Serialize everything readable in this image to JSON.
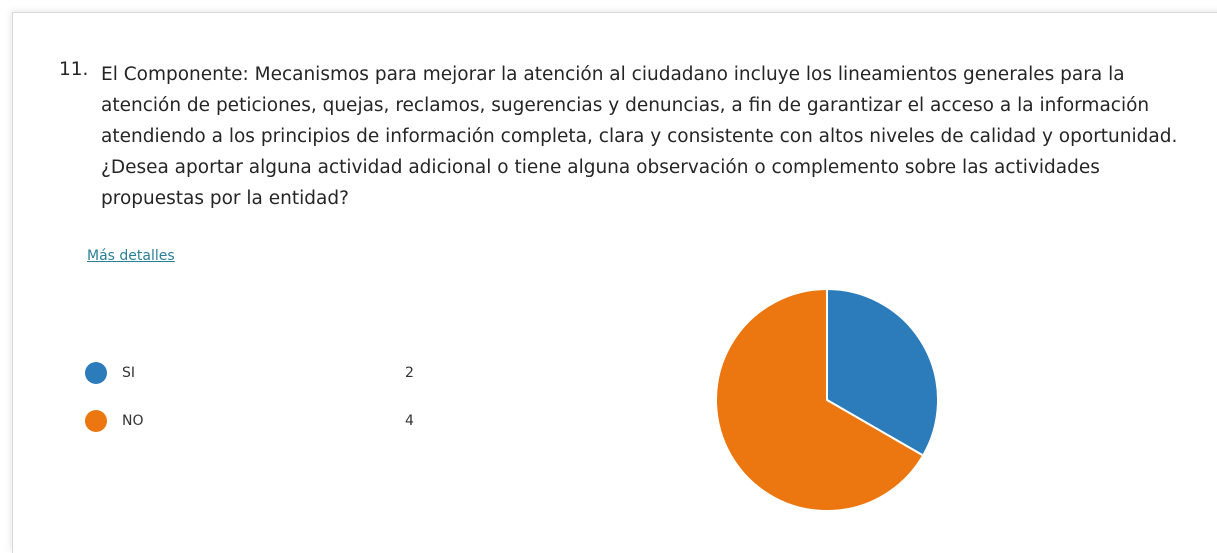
{
  "question": {
    "number": "11.",
    "text": "El Componente: Mecanismos para mejorar la atención al ciudadano incluye los lineamientos generales para la atención de peticiones, quejas, reclamos, sugerencias y denuncias, a fin de  garantizar el acceso a la información atendiendo  a los principios de información completa, clara y consistente con altos niveles de calidad y oportunidad.  ¿Desea aportar alguna actividad adicional  o tiene alguna observación o complemento sobre las actividades propuestas por la entidad?"
  },
  "details_link": "Más detalles",
  "chart_data": {
    "type": "pie",
    "categories": [
      "SI",
      "NO"
    ],
    "values": [
      2,
      4
    ],
    "colors": [
      "#2c7bbb",
      "#ec760f"
    ]
  }
}
